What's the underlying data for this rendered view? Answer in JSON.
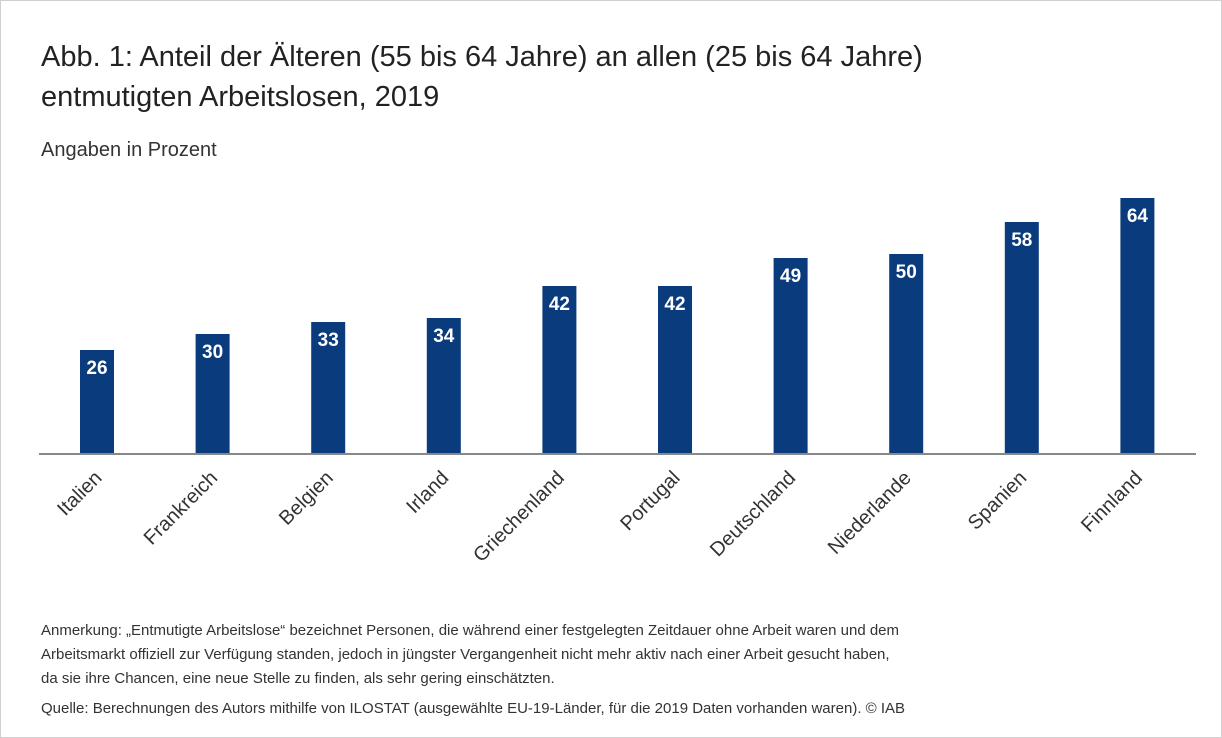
{
  "chart_data": {
    "type": "bar",
    "title": [
      "Abb. 1: Anteil der Älteren (55 bis 64 Jahre) an allen (25 bis 64 Jahre)",
      "entmutigten Arbeitslosen, 2019"
    ],
    "subtitle": "Angaben in Prozent",
    "categories": [
      "Italien",
      "Frankreich",
      "Belgien",
      "Irland",
      "Griechenland",
      "Portugal",
      "Deutschland",
      "Niederlande",
      "Spanien",
      "Finnland"
    ],
    "values": [
      26,
      30,
      33,
      34,
      42,
      42,
      49,
      50,
      58,
      64
    ],
    "color": "#0a3b7c",
    "note": [
      "Anmerkung: „Entmutigte Arbeitslose“ bezeichnet Personen, die während einer festgelegten Zeitdauer ohne Arbeit waren und dem",
      "Arbeitsmarkt offiziell zur Verfügung standen, jedoch in jüngster Vergangenheit  nicht mehr aktiv nach einer Arbeit gesucht haben,",
      "da sie ihre Chancen, eine neue Stelle zu finden, als sehr gering einschätzten."
    ],
    "source": "Quelle: Berechnungen des Autors mithilfe von ILOSTAT (ausgewählte EU-19-Länder, für die 2019 Daten vorhanden waren). © IAB"
  }
}
